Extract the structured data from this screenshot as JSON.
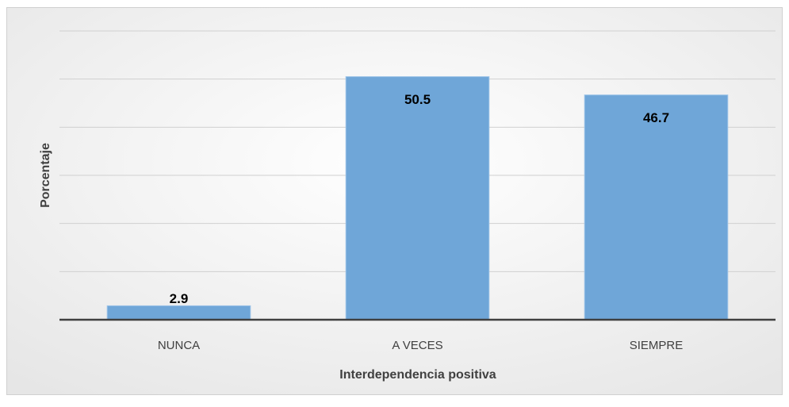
{
  "chart_data": {
    "type": "bar",
    "xlabel": "Interdependencia positiva",
    "ylabel": "Porcentaje",
    "categories": [
      "NUNCA",
      "A VECES",
      "SIEMPRE"
    ],
    "values": [
      2.9,
      50.5,
      46.7
    ],
    "color": "#6fa6d8",
    "ylim": [
      0,
      60
    ],
    "yticks": [
      0,
      10,
      20,
      30,
      40,
      50,
      60
    ],
    "grid": true
  }
}
